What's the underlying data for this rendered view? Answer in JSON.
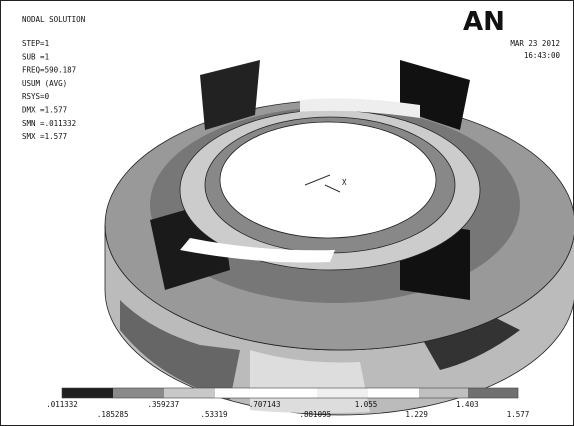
{
  "header": {
    "title": "NODAL SOLUTION",
    "info": [
      "STEP=1",
      "SUB =1",
      "FREQ=590.187",
      "USUM     (AVG)",
      "RSYS=0",
      "DMX =1.577",
      "SMN =.011332",
      "SMX =1.577"
    ],
    "logo": "AN",
    "date": "MAR 23 2012",
    "time": "16:43:00"
  },
  "triad": {
    "axis": "X"
  },
  "legend": {
    "labels": [
      ".011332",
      ".185285",
      ".359237",
      ".53319",
      ".707143",
      ".881095",
      "1.055",
      "1.229",
      "1.403",
      "1.577"
    ]
  }
}
